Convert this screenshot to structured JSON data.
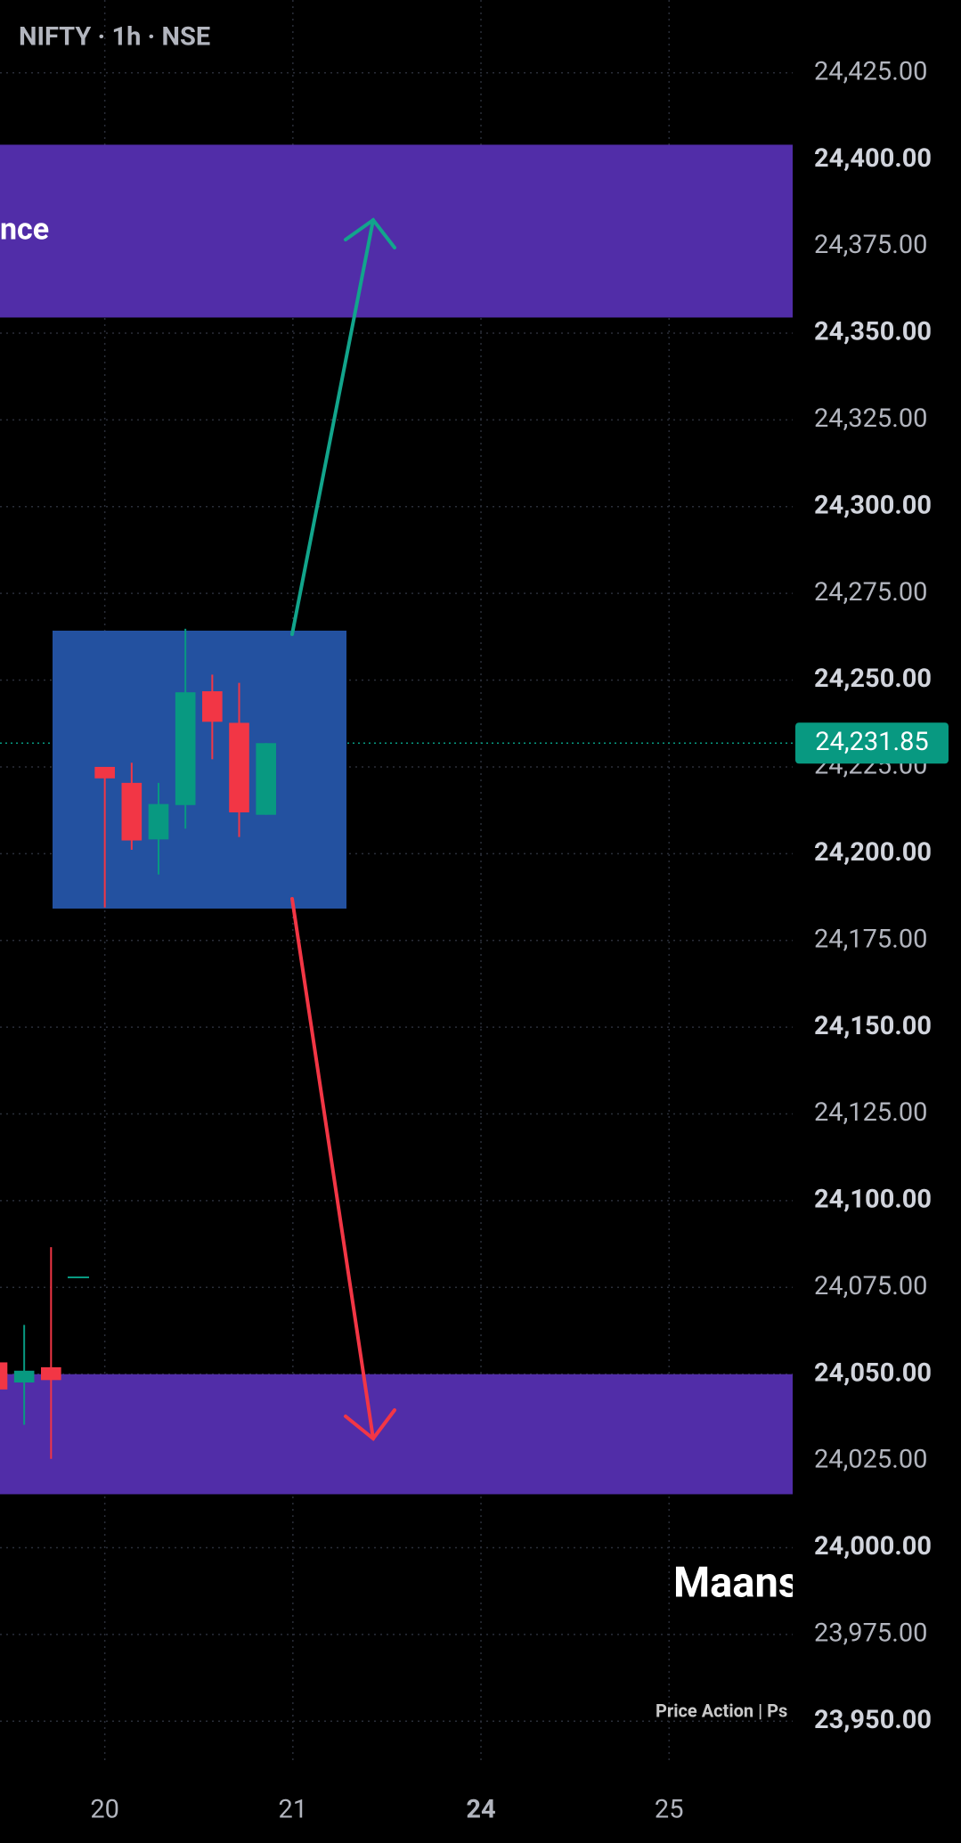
{
  "chart_data": {
    "type": "candlestick",
    "title": "NIFTY · 1h · NSE",
    "x": [
      -4,
      -3,
      -2,
      0,
      1,
      2,
      3,
      4,
      5,
      6
    ],
    "open": [
      24053.4,
      24047.6,
      24052.0,
      24225.0,
      24220.4,
      24204.1,
      24214.0,
      24246.8,
      24237.7,
      24211.2
    ],
    "high": [
      24053.4,
      24064.2,
      24086.6,
      24225.0,
      24226.2,
      24220.4,
      24264.8,
      24251.6,
      24249.2,
      24231.85
    ],
    "low": [
      24045.6,
      24035.4,
      24025.6,
      24184.5,
      24201.1,
      24194.0,
      24207.2,
      24227.2,
      24204.8,
      24211.2
    ],
    "close": [
      24045.6,
      24051.0,
      24048.3,
      24221.7,
      24203.8,
      24214.3,
      24246.5,
      24238.0,
      24211.9,
      24231.85
    ],
    "up_color": "#089981",
    "down_color": "#f23645",
    "xlim": [
      -3.9,
      25.6
    ],
    "xticks": [
      {
        "value": 0,
        "label": "20"
      },
      {
        "value": 7,
        "label": "21"
      },
      {
        "value": 14,
        "label": "24"
      },
      {
        "value": 21,
        "label": "25"
      }
    ],
    "ylim": [
      23938,
      24446
    ],
    "yticks": [
      {
        "value": 24425,
        "label": "24,425.00"
      },
      {
        "value": 24400,
        "label": "24,400.00"
      },
      {
        "value": 24375,
        "label": "24,375.00"
      },
      {
        "value": 24350,
        "label": "24,350.00"
      },
      {
        "value": 24325,
        "label": "24,325.00"
      },
      {
        "value": 24300,
        "label": "24,300.00"
      },
      {
        "value": 24275,
        "label": "24,275.00"
      },
      {
        "value": 24250,
        "label": "24,250.00"
      },
      {
        "value": 24225,
        "label": "24,225.00"
      },
      {
        "value": 24200,
        "label": "24,200.00"
      },
      {
        "value": 24175,
        "label": "24,175.00"
      },
      {
        "value": 24150,
        "label": "24,150.00"
      },
      {
        "value": 24125,
        "label": "24,125.00"
      },
      {
        "value": 24100,
        "label": "24,100.00"
      },
      {
        "value": 24075,
        "label": "24,075.00"
      },
      {
        "value": 24050,
        "label": "24,050.00"
      },
      {
        "value": 24025,
        "label": "24,025.00"
      },
      {
        "value": 24000,
        "label": "24,000.00"
      },
      {
        "value": 23975,
        "label": "23,975.00"
      },
      {
        "value": 23950,
        "label": "23,950.00"
      }
    ],
    "grid": true,
    "last_price": {
      "value": 24231.85,
      "label": "24,231.85"
    },
    "zones": [
      {
        "label": "nce",
        "top": 24404.3,
        "bottom": 24354.5,
        "color": "#512da8"
      },
      {
        "top": 24050.0,
        "bottom": 24015.4,
        "color": "#512da8"
      }
    ],
    "watermark": {
      "title": "Maans",
      "subtitle": "Price Action | Ps"
    }
  }
}
